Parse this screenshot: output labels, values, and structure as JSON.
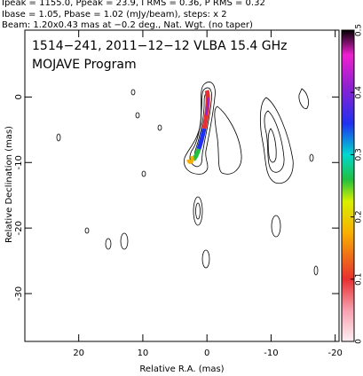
{
  "chart_data": {
    "type": "contour",
    "header": [
      "Ipeak = 1155.0, Ppeak = 23.9, I RMS = 0.36, P RMS = 0.32",
      "Ibase = 1.05, Pbase = 1.02 (mJy/beam), steps: x 2",
      "Beam: 1.20x0.43 mas at −0.2 deg., Nat. Wgt. (no taper)"
    ],
    "annotations": [
      "1514−241, 2011−12−12 VLBA 15.4 GHz",
      "MOJAVE Program"
    ],
    "xlabel": "Relative R.A. (mas)",
    "ylabel": "Relative Declination (mas)",
    "xlim": [
      28.4,
      -20.6
    ],
    "xticks": [
      20,
      10,
      0,
      -10,
      -20
    ],
    "ylim": [
      10.2,
      -37.3
    ],
    "yticks": [
      0,
      -10,
      -20,
      -30
    ],
    "colorbar": {
      "lim": [
        0,
        0.5
      ],
      "ticks": [
        0,
        0.1,
        0.2,
        0.3,
        0.4,
        0.5
      ]
    }
  }
}
